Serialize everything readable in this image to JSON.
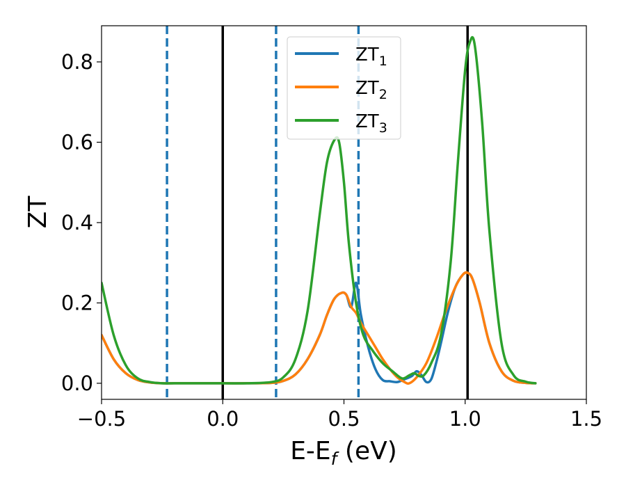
{
  "chart_data": {
    "type": "line",
    "title": "",
    "xlabel": {
      "base": "E-E",
      "sub": "f",
      "rest": " (eV)"
    },
    "ylabel": "ZT",
    "xlim": [
      -0.5,
      1.5
    ],
    "ylim": [
      -0.04,
      0.89
    ],
    "xticks": [
      -0.5,
      0.0,
      0.5,
      1.0,
      1.5
    ],
    "xtick_labels": [
      "−0.5",
      "0.0",
      "0.5",
      "1.0",
      "1.5"
    ],
    "yticks": [
      0.0,
      0.2,
      0.4,
      0.6,
      0.8
    ],
    "ytick_labels": [
      "0.0",
      "0.2",
      "0.4",
      "0.6",
      "0.8"
    ],
    "grid": false,
    "legend_position": "top-center",
    "vertical_lines": [
      {
        "x": -0.23,
        "style": "dashed",
        "color": "#1f77b4"
      },
      {
        "x": 0.0,
        "style": "solid",
        "color": "#000000"
      },
      {
        "x": 0.22,
        "style": "dashed",
        "color": "#1f77b4"
      },
      {
        "x": 0.56,
        "style": "dashed",
        "color": "#1f77b4"
      },
      {
        "x": 1.01,
        "style": "solid",
        "color": "#000000"
      }
    ],
    "series": [
      {
        "name": "ZT1",
        "label_base": "ZT",
        "label_sub": "1",
        "color": "#1f77b4",
        "x": [
          -0.5,
          -0.45,
          -0.4,
          -0.35,
          -0.3,
          -0.25,
          -0.2,
          -0.1,
          0.0,
          0.1,
          0.2,
          0.25,
          0.3,
          0.35,
          0.4,
          0.43,
          0.46,
          0.49,
          0.51,
          0.53,
          0.55,
          0.57,
          0.6,
          0.63,
          0.66,
          0.69,
          0.72,
          0.75,
          0.78,
          0.8,
          0.82,
          0.84,
          0.86,
          0.88,
          0.9,
          0.93,
          0.96,
          0.99,
          1.01,
          1.03,
          1.06,
          1.1,
          1.15,
          1.2,
          1.25,
          1.29
        ],
        "y": [
          0.12,
          0.06,
          0.025,
          0.008,
          0.002,
          0.0,
          0.0,
          0.0,
          0.0,
          0.0,
          0.001,
          0.006,
          0.022,
          0.06,
          0.12,
          0.17,
          0.21,
          0.225,
          0.22,
          0.19,
          0.25,
          0.17,
          0.09,
          0.035,
          0.008,
          0.005,
          0.003,
          0.01,
          0.018,
          0.03,
          0.02,
          0.003,
          0.01,
          0.05,
          0.1,
          0.18,
          0.24,
          0.27,
          0.275,
          0.26,
          0.2,
          0.1,
          0.03,
          0.006,
          0.001,
          0.0
        ]
      },
      {
        "name": "ZT2",
        "label_base": "ZT",
        "label_sub": "2",
        "color": "#ff7f0e",
        "x": [
          -0.5,
          -0.45,
          -0.4,
          -0.35,
          -0.3,
          -0.25,
          -0.2,
          -0.1,
          0.0,
          0.1,
          0.2,
          0.25,
          0.3,
          0.35,
          0.4,
          0.43,
          0.46,
          0.49,
          0.51,
          0.53,
          0.55,
          0.57,
          0.6,
          0.63,
          0.66,
          0.69,
          0.72,
          0.75,
          0.77,
          0.8,
          0.84,
          0.88,
          0.92,
          0.96,
          0.99,
          1.01,
          1.03,
          1.06,
          1.1,
          1.15,
          1.2,
          1.25,
          1.29
        ],
        "y": [
          0.12,
          0.06,
          0.025,
          0.008,
          0.002,
          0.0,
          0.0,
          0.0,
          0.0,
          0.0,
          0.001,
          0.006,
          0.022,
          0.06,
          0.12,
          0.17,
          0.21,
          0.225,
          0.22,
          0.19,
          0.175,
          0.15,
          0.12,
          0.09,
          0.06,
          0.035,
          0.015,
          0.003,
          0.0,
          0.015,
          0.05,
          0.11,
          0.18,
          0.24,
          0.27,
          0.275,
          0.26,
          0.2,
          0.1,
          0.03,
          0.006,
          0.001,
          0.0
        ]
      },
      {
        "name": "ZT3",
        "label_base": "ZT",
        "label_sub": "3",
        "color": "#2ca02c",
        "x": [
          -0.5,
          -0.45,
          -0.4,
          -0.35,
          -0.3,
          -0.25,
          -0.2,
          -0.1,
          0.0,
          0.1,
          0.2,
          0.25,
          0.3,
          0.35,
          0.4,
          0.43,
          0.46,
          0.48,
          0.5,
          0.52,
          0.55,
          0.58,
          0.62,
          0.66,
          0.7,
          0.74,
          0.77,
          0.79,
          0.81,
          0.83,
          0.86,
          0.9,
          0.94,
          0.97,
          1.0,
          1.02,
          1.04,
          1.07,
          1.1,
          1.15,
          1.2,
          1.25,
          1.29
        ],
        "y": [
          0.25,
          0.12,
          0.045,
          0.012,
          0.003,
          0.0,
          0.0,
          0.0,
          0.0,
          0.0,
          0.003,
          0.015,
          0.06,
          0.18,
          0.42,
          0.55,
          0.605,
          0.6,
          0.5,
          0.35,
          0.2,
          0.12,
          0.08,
          0.05,
          0.03,
          0.012,
          0.02,
          0.025,
          0.018,
          0.02,
          0.05,
          0.12,
          0.3,
          0.55,
          0.78,
          0.85,
          0.84,
          0.65,
          0.38,
          0.1,
          0.02,
          0.004,
          0.0
        ]
      }
    ]
  }
}
